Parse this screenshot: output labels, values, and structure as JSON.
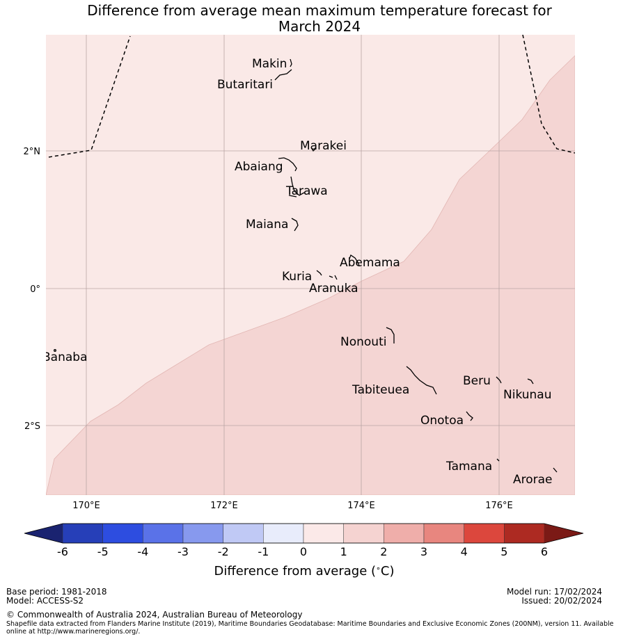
{
  "title": {
    "line1": "Difference from average mean maximum temperature forecast for",
    "line2": "March 2024"
  },
  "map": {
    "lat_labels": [
      "2°N",
      "0°",
      "2°S"
    ],
    "lon_labels": [
      "170°E",
      "172°E",
      "174°E",
      "176°E"
    ],
    "places": [
      {
        "name": "Makin",
        "lon": 173.0,
        "lat": 3.35
      },
      {
        "name": "Butaritari",
        "lon": 172.8,
        "lat": 3.1
      },
      {
        "name": "Marakei",
        "lon": 173.3,
        "lat": 2.0
      },
      {
        "name": "Abaiang",
        "lon": 173.0,
        "lat": 1.8
      },
      {
        "name": "Tarawa",
        "lon": 173.0,
        "lat": 1.45
      },
      {
        "name": "Maiana",
        "lon": 173.0,
        "lat": 0.95
      },
      {
        "name": "Abemama",
        "lon": 173.85,
        "lat": 0.4
      },
      {
        "name": "Kuria",
        "lon": 173.4,
        "lat": 0.22
      },
      {
        "name": "Aranuka",
        "lon": 173.6,
        "lat": 0.15
      },
      {
        "name": "Nonouti",
        "lon": 174.4,
        "lat": -0.65
      },
      {
        "name": "Banaba",
        "lon": 169.55,
        "lat": -0.88
      },
      {
        "name": "Tabiteuea",
        "lon": 174.8,
        "lat": -1.35
      },
      {
        "name": "Beru",
        "lon": 176.0,
        "lat": -1.33
      },
      {
        "name": "Nikunau",
        "lon": 176.45,
        "lat": -1.38
      },
      {
        "name": "Onotoa",
        "lon": 175.55,
        "lat": -1.8
      },
      {
        "name": "Tamana",
        "lon": 175.98,
        "lat": -2.5
      },
      {
        "name": "Arorae",
        "lon": 176.82,
        "lat": -2.65
      }
    ],
    "category_colors": {
      "zero_to_one": "#fae9e7",
      "one_to_two": "#f4d5d3"
    }
  },
  "colorbar": {
    "ticks": [
      "-6",
      "-5",
      "-4",
      "-3",
      "-2",
      "-1",
      "0",
      "1",
      "2",
      "3",
      "4",
      "5",
      "6"
    ],
    "colors": [
      "#1a2370",
      "#263fb8",
      "#2d4de0",
      "#5a72e8",
      "#8799ee",
      "#c0c9f5",
      "#e8ecfb",
      "#fbe9e8",
      "#f5d3d1",
      "#efaeaa",
      "#e8867f",
      "#dc473d",
      "#ad2a22",
      "#7b1a16"
    ],
    "label": "Difference from average (",
    "label_unit": "C)",
    "degree_symbol": "∘"
  },
  "footer": {
    "base_period": "Base period: 1981-2018",
    "model": "Model: ACCESS-S2",
    "model_run": "Model run: 17/02/2024",
    "issued": "Issued: 20/02/2024",
    "copyright": "© Commonwealth of Australia 2024, Australian Bureau of Meteorology",
    "shapefile_line1": "Shapefile data extracted from Flanders Marine Institute (2019), Maritime Boundaries Geodatabase: Maritime Boundaries and Exclusive Economic Zones (200NM), version 11. Available",
    "shapefile_line2": "online at http://www.marineregions.org/."
  }
}
